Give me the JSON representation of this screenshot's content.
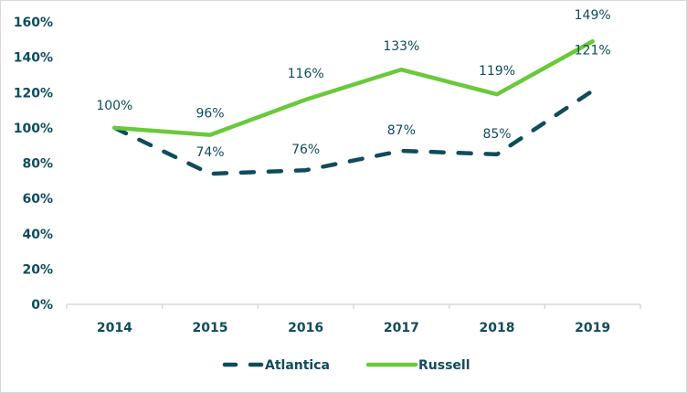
{
  "chart_data": {
    "type": "line",
    "title": "",
    "xlabel": "",
    "ylabel": "",
    "categories": [
      "2014",
      "2015",
      "2016",
      "2017",
      "2018",
      "2019"
    ],
    "ylim": [
      0,
      160
    ],
    "yticks": [
      0,
      20,
      40,
      60,
      80,
      100,
      120,
      140,
      160
    ],
    "ytick_labels": [
      "0%",
      "20%",
      "40%",
      "60%",
      "80%",
      "100%",
      "120%",
      "140%",
      "160%"
    ],
    "grid": false,
    "legend_position": "bottom",
    "series": [
      {
        "name": "Atlantica",
        "style": "dashed",
        "color": "#0f4c5c",
        "values": [
          100,
          74,
          76,
          87,
          85,
          121
        ],
        "labels": [
          "",
          "74%",
          "76%",
          "87%",
          "85%",
          "121%"
        ]
      },
      {
        "name": "Russell",
        "style": "solid",
        "color": "#6ac93a",
        "values": [
          100,
          96,
          116,
          133,
          119,
          149
        ],
        "labels": [
          "100%",
          "96%",
          "116%",
          "133%",
          "119%",
          "149%"
        ]
      }
    ]
  }
}
